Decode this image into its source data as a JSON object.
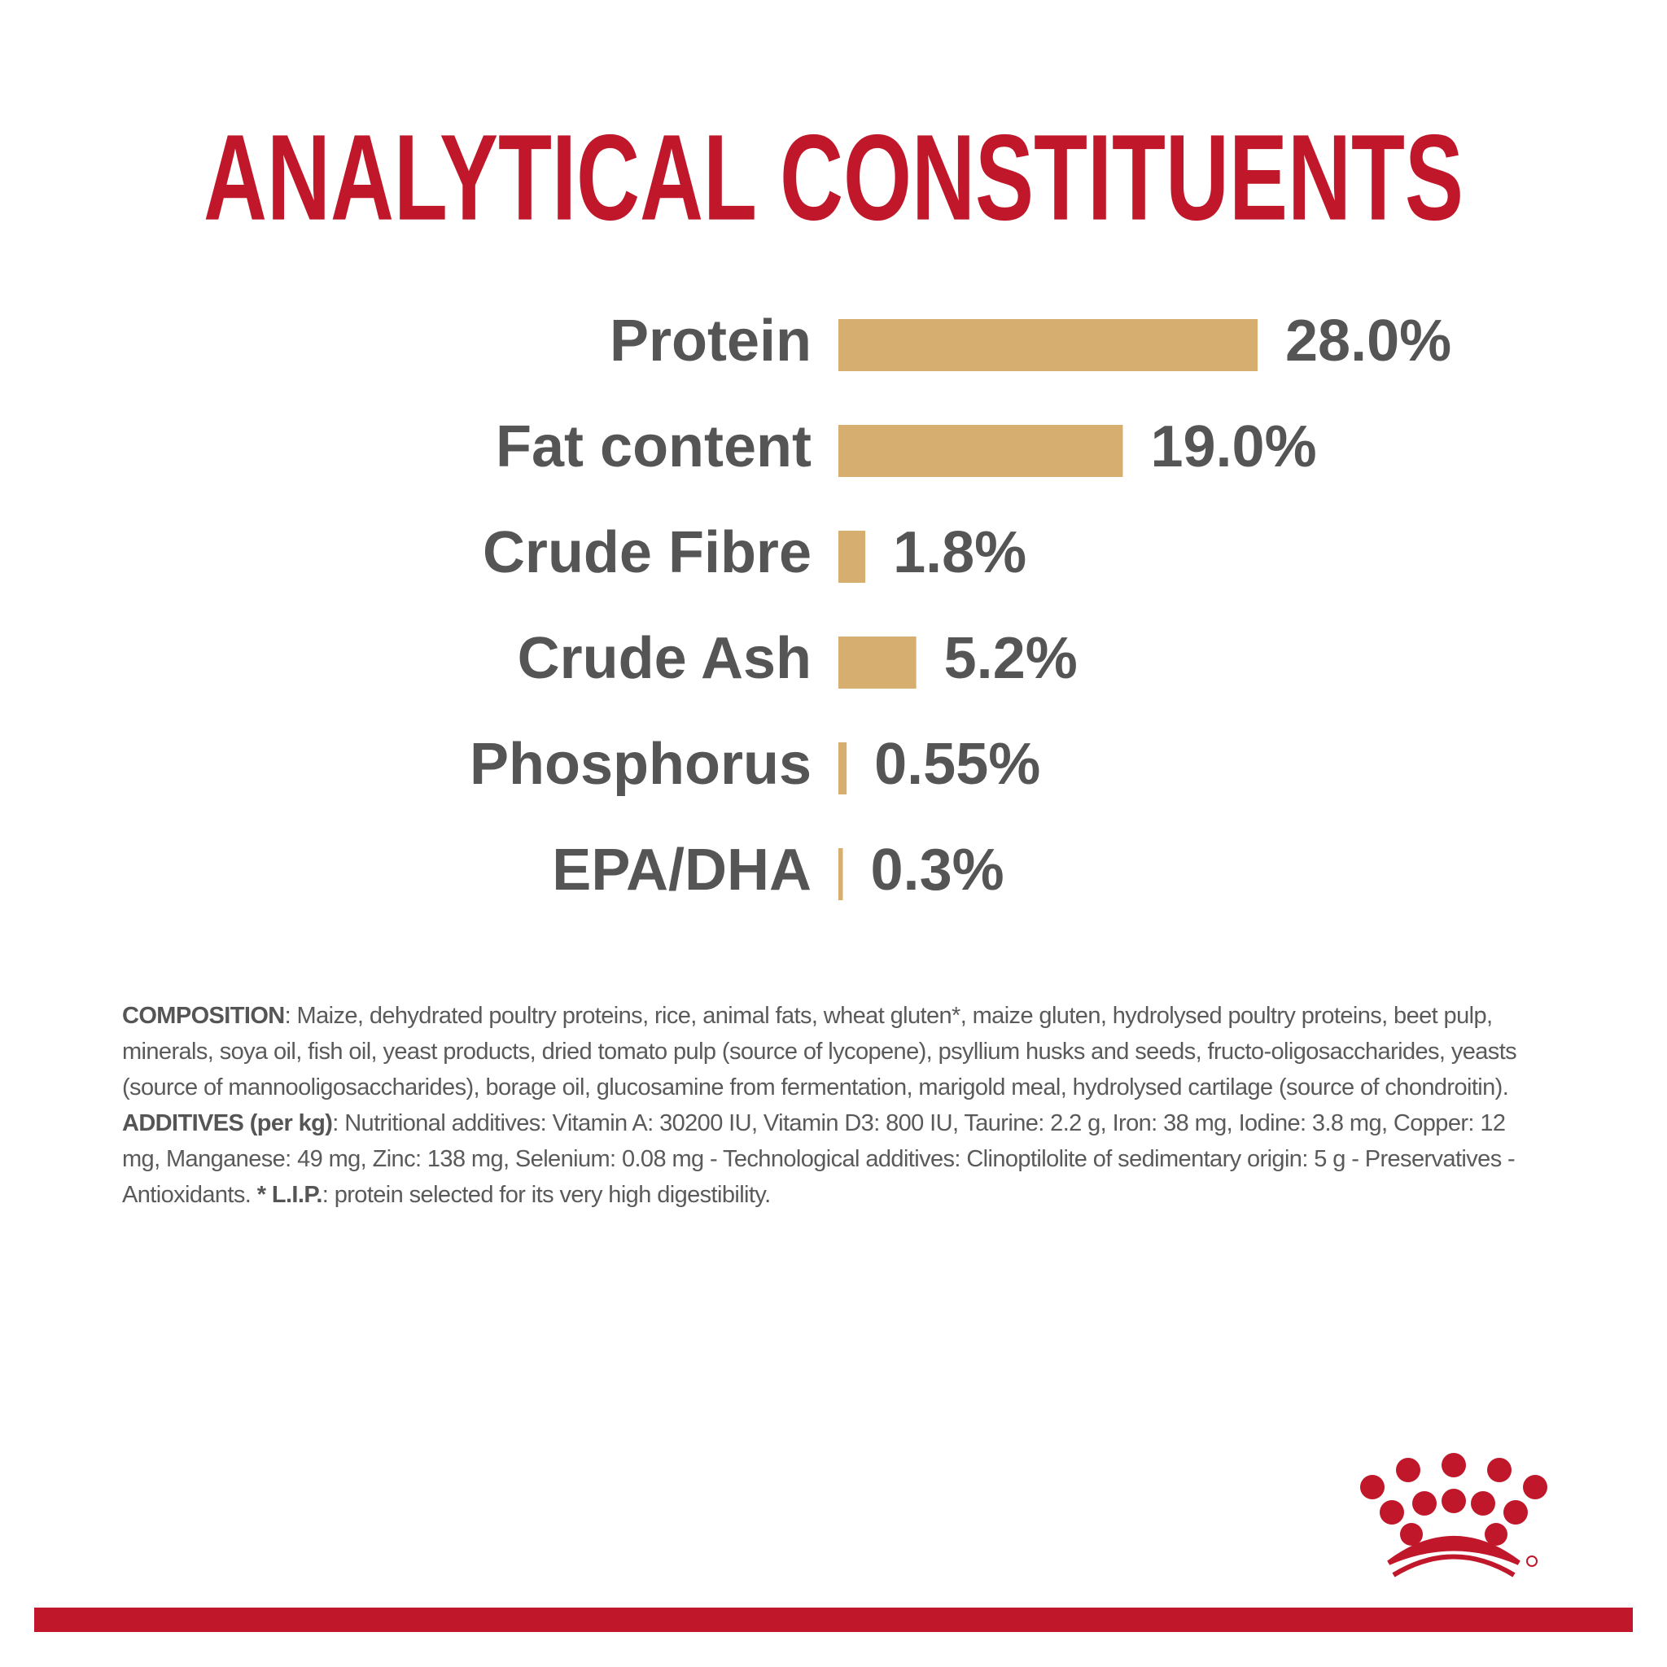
{
  "chart_data": {
    "type": "bar",
    "orientation": "horizontal",
    "title": "ANALYTICAL CONSTITUENTS",
    "categories": [
      "Protein",
      "Fat content",
      "Crude Fibre",
      "Crude Ash",
      "Phosphorus",
      "EPA/DHA"
    ],
    "values": [
      28.0,
      19.0,
      1.8,
      5.2,
      0.55,
      0.3
    ],
    "value_labels": [
      "28.0%",
      "19.0%",
      "1.8%",
      "5.2%",
      "0.55%",
      "0.3%"
    ],
    "color": "#d6ae6f"
  },
  "composition": [
    {
      "text": "COMPOSITION",
      "bold": true
    },
    {
      "text": ": Maize, dehydrated poultry proteins, rice, animal fats, wheat gluten*, maize gluten, hydrolysed poultry proteins, beet pulp, minerals, soya oil, fish oil, yeast products, dried tomato pulp (source of lycopene), psyllium husks and seeds, fructo-oligosaccharides, yeasts (source of mannooligosaccharides), borage oil, glucosamine from fermentation, marigold meal, hydrolysed cartilage (source of chondroitin). ",
      "bold": false
    },
    {
      "text": "ADDITIVES (per kg)",
      "bold": true
    },
    {
      "text": ": Nutritional additives: Vitamin A: 30200 IU, Vitamin D3: 800 IU, Taurine: 2.2 g, Iron: 38 mg, Iodine: 3.8 mg, Copper: 12 mg, Manganese: 49 mg, Zinc: 138 mg, Selenium: 0.08 mg - Technological additives: Clinoptilolite of sedimentary origin: 5 g - Preservatives - Antioxidants. ",
      "bold": false
    },
    {
      "text": "* L.I.P.",
      "bold": true
    },
    {
      "text": ": protein selected for its very high digestibility.",
      "bold": false
    }
  ]
}
